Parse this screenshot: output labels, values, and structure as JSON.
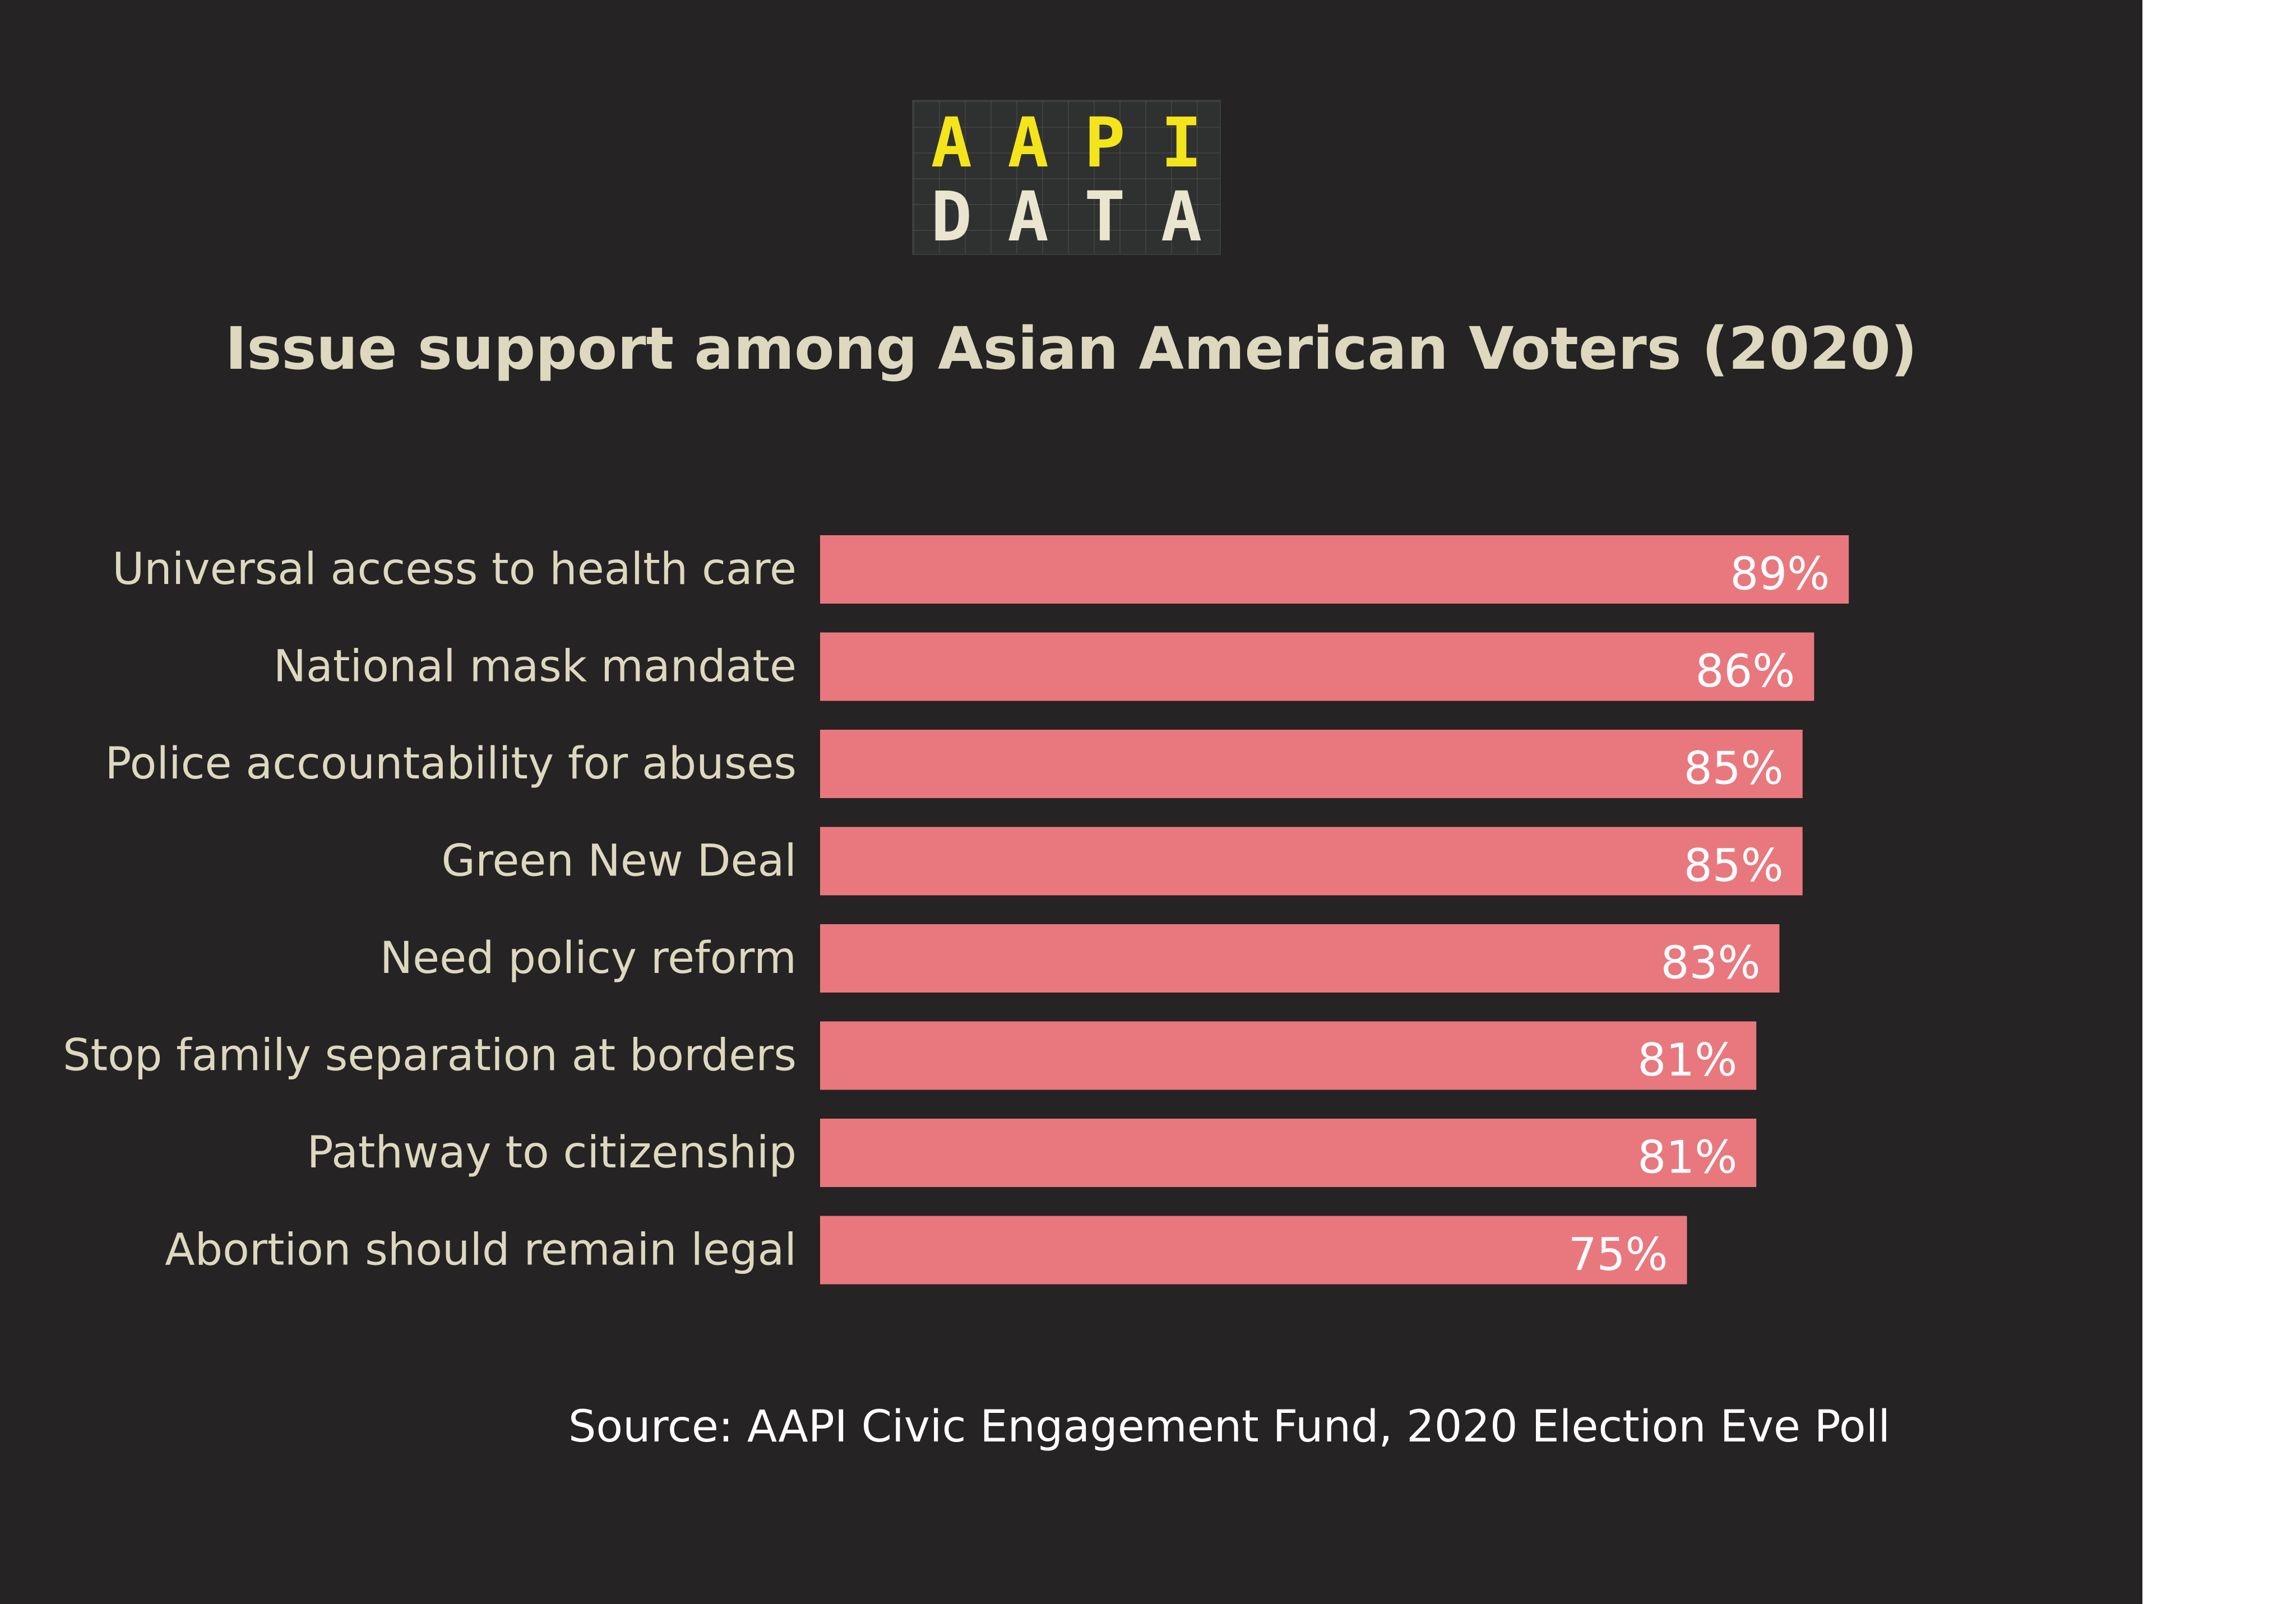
{
  "logo": {
    "top": [
      "A",
      "A",
      "P",
      "I"
    ],
    "bottom": [
      "D",
      "A",
      "T",
      "A"
    ]
  },
  "colors": {
    "background": "#252324",
    "bar": "#e9787e",
    "label_text": "#ddd8be",
    "value_text": "#ffffff",
    "logo_top": "#f4e41c",
    "logo_bottom": "#e9e5cf"
  },
  "chart_data": {
    "type": "bar",
    "orientation": "horizontal",
    "title": "Issue support among Asian American Voters (2020)",
    "xlabel": "",
    "ylabel": "",
    "xlim": [
      0,
      100
    ],
    "grid": false,
    "legend": "none",
    "categories": [
      "Universal access to health care",
      "National mask mandate",
      "Police accountability for abuses",
      "Green New Deal",
      "Need policy reform",
      "Stop family separation at borders",
      "Pathway to citizenship",
      "Abortion should remain legal"
    ],
    "values": [
      89,
      86,
      85,
      85,
      83,
      81,
      81,
      75
    ],
    "value_labels": [
      "89%",
      "86%",
      "85%",
      "85%",
      "83%",
      "81%",
      "81%",
      "75%"
    ]
  },
  "source": "Source: AAPI Civic Engagement Fund, 2020 Election Eve Poll"
}
